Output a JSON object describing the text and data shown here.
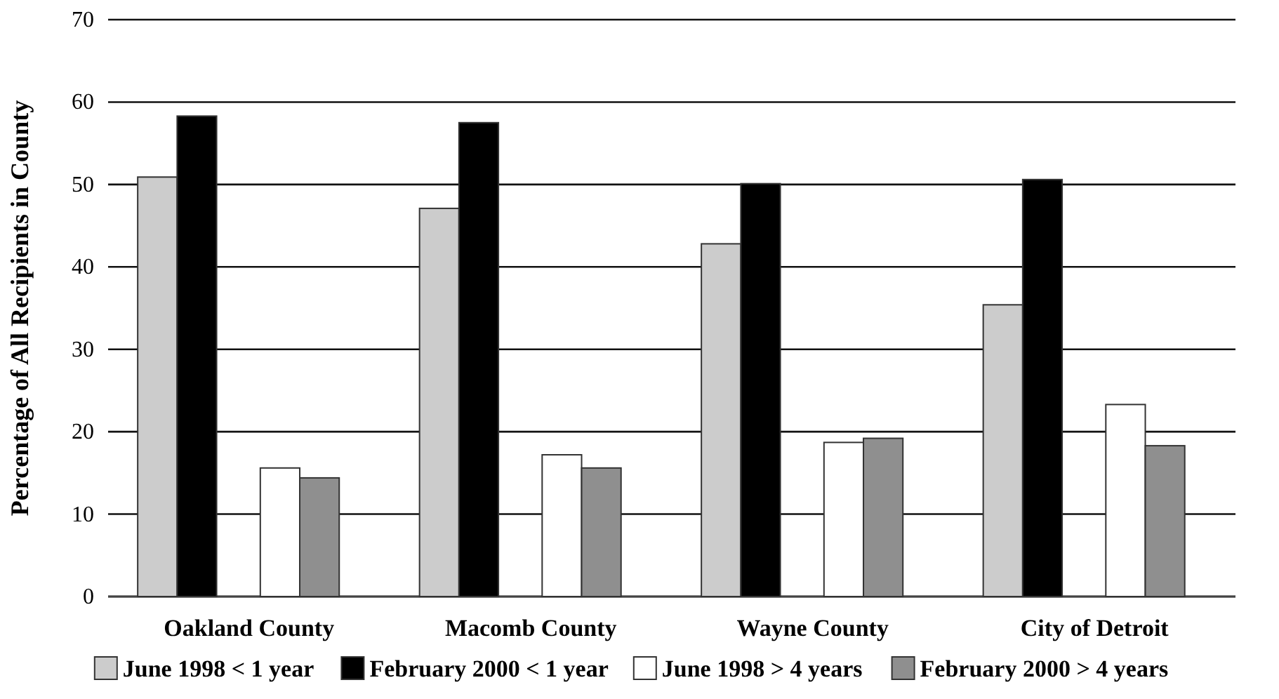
{
  "chart_data": {
    "type": "bar",
    "ylabel": "Percentage of All Recipients in County",
    "categories": [
      "Oakland County",
      "Macomb County",
      "Wayne County",
      "City of Detroit"
    ],
    "series": [
      {
        "name": "June 1998 < 1 year",
        "color": "#cccccc",
        "values": [
          50.9,
          47.1,
          42.8,
          35.4
        ]
      },
      {
        "name": "February 2000 < 1 year",
        "color": "#000000",
        "values": [
          58.3,
          57.5,
          50.1,
          50.6
        ]
      },
      {
        "name": "June 1998 > 4 years",
        "color": "#ffffff",
        "values": [
          15.6,
          17.2,
          18.7,
          23.3
        ]
      },
      {
        "name": "February 2000 > 4 years",
        "color": "#8f8f8f",
        "values": [
          14.4,
          15.6,
          19.2,
          18.3
        ]
      }
    ],
    "ylim": [
      0,
      70
    ],
    "yticks": [
      0,
      10,
      20,
      30,
      40,
      50,
      60,
      70
    ],
    "grid": "y",
    "legend": "bottom"
  }
}
